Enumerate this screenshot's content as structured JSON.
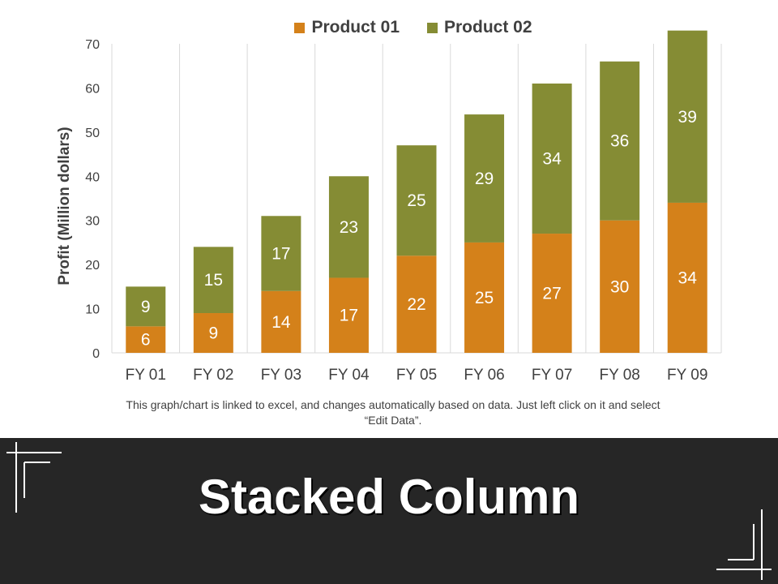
{
  "legend": {
    "items": [
      {
        "label": "Product 01",
        "color": "#D4811A"
      },
      {
        "label": "Product 02",
        "color": "#858C34"
      }
    ]
  },
  "note": {
    "text": "This graph/chart is linked to excel, and changes automatically based on data. Just left click on it and select “Edit Data”."
  },
  "banner": {
    "title": "Stacked Column",
    "background": "#262626"
  },
  "chart_data": {
    "type": "bar",
    "stacked": true,
    "title": "",
    "xlabel": "",
    "ylabel": "Profit  (Million dollars)",
    "ylim": [
      0,
      70
    ],
    "yticks": [
      0,
      10,
      20,
      30,
      40,
      50,
      60,
      70
    ],
    "grid": "vertical",
    "legend_position": "top",
    "categories": [
      "FY 01",
      "FY 02",
      "FY 03",
      "FY 04",
      "FY 05",
      "FY 06",
      "FY 07",
      "FY 08",
      "FY 09"
    ],
    "series": [
      {
        "name": "Product 01",
        "color": "#D4811A",
        "values": [
          6,
          9,
          14,
          17,
          22,
          25,
          27,
          30,
          34
        ]
      },
      {
        "name": "Product 02",
        "color": "#858C34",
        "values": [
          9,
          15,
          17,
          23,
          25,
          29,
          34,
          36,
          39
        ]
      }
    ]
  }
}
